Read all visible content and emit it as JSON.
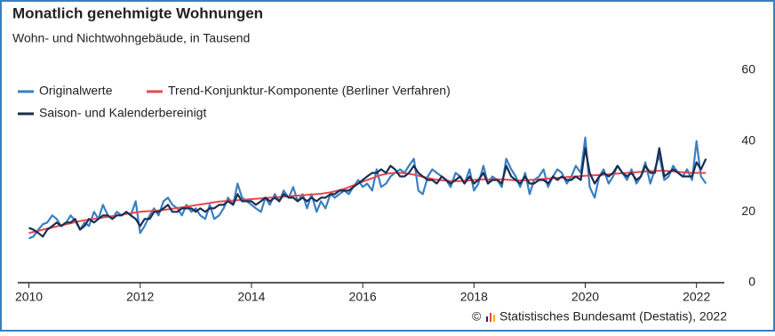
{
  "chart_data": {
    "type": "line",
    "title": "Monatlich genehmigte Wohnungen",
    "subtitle": "Wohn- und Nichtwohngebäude, in Tausend",
    "source_prefix": "©",
    "source": "Statistisches Bundesamt (Destatis), 2022",
    "xlim": [
      2009.8,
      2022.5
    ],
    "xticks": [
      2010,
      2012,
      2014,
      2016,
      2018,
      2020,
      2022
    ],
    "ylim": [
      0,
      60
    ],
    "yticks": [
      0,
      20,
      40,
      60
    ],
    "grid": false,
    "x": [
      2010.0,
      2010.08,
      2010.17,
      2010.25,
      2010.33,
      2010.42,
      2010.5,
      2010.58,
      2010.67,
      2010.75,
      2010.83,
      2010.92,
      2011.0,
      2011.08,
      2011.17,
      2011.25,
      2011.33,
      2011.42,
      2011.5,
      2011.58,
      2011.67,
      2011.75,
      2011.83,
      2011.92,
      2012.0,
      2012.08,
      2012.17,
      2012.25,
      2012.33,
      2012.42,
      2012.5,
      2012.58,
      2012.67,
      2012.75,
      2012.83,
      2012.92,
      2013.0,
      2013.08,
      2013.17,
      2013.25,
      2013.33,
      2013.42,
      2013.5,
      2013.58,
      2013.67,
      2013.75,
      2013.83,
      2013.92,
      2014.0,
      2014.08,
      2014.17,
      2014.25,
      2014.33,
      2014.42,
      2014.5,
      2014.58,
      2014.67,
      2014.75,
      2014.83,
      2014.92,
      2015.0,
      2015.08,
      2015.17,
      2015.25,
      2015.33,
      2015.42,
      2015.5,
      2015.58,
      2015.67,
      2015.75,
      2015.83,
      2015.92,
      2016.0,
      2016.08,
      2016.17,
      2016.25,
      2016.33,
      2016.42,
      2016.5,
      2016.58,
      2016.67,
      2016.75,
      2016.83,
      2016.92,
      2017.0,
      2017.08,
      2017.17,
      2017.25,
      2017.33,
      2017.42,
      2017.5,
      2017.58,
      2017.67,
      2017.75,
      2017.83,
      2017.92,
      2018.0,
      2018.08,
      2018.17,
      2018.25,
      2018.33,
      2018.42,
      2018.5,
      2018.58,
      2018.67,
      2018.75,
      2018.83,
      2018.92,
      2019.0,
      2019.08,
      2019.17,
      2019.25,
      2019.33,
      2019.42,
      2019.5,
      2019.58,
      2019.67,
      2019.75,
      2019.83,
      2019.92,
      2020.0,
      2020.08,
      2020.17,
      2020.25,
      2020.33,
      2020.42,
      2020.5,
      2020.58,
      2020.67,
      2020.75,
      2020.83,
      2020.92,
      2021.0,
      2021.08,
      2021.17,
      2021.25,
      2021.33,
      2021.42,
      2021.5,
      2021.58,
      2021.67,
      2021.75,
      2021.83,
      2021.92,
      2022.0,
      2022.08,
      2022.17
    ],
    "series": [
      {
        "name": "Originalwerte",
        "color": "#3a7fc1",
        "values": [
          12.5,
          13,
          15,
          16.5,
          17,
          19,
          18,
          16,
          17,
          19,
          17.5,
          15,
          17,
          16,
          20,
          18,
          22,
          19,
          18,
          20,
          19,
          20,
          19,
          23,
          14,
          16,
          19,
          21,
          19,
          23,
          24,
          22,
          21,
          19,
          22,
          20,
          21,
          19,
          18,
          22,
          18,
          19,
          21,
          24,
          22,
          28,
          24,
          23,
          22,
          21,
          20,
          24,
          22,
          25,
          23,
          26,
          24,
          27,
          23,
          25,
          21,
          25,
          20,
          23,
          21,
          25,
          24,
          25,
          26,
          25,
          27,
          29,
          27,
          28,
          26,
          32,
          27,
          28,
          30,
          31,
          32,
          31,
          33,
          35,
          26,
          25,
          30,
          32,
          31,
          30,
          29,
          27,
          31,
          30,
          28,
          32,
          26,
          28,
          33,
          28,
          30,
          29,
          27,
          35,
          32,
          30,
          27,
          31,
          25,
          29,
          30,
          32,
          27,
          30,
          32,
          31,
          28,
          30,
          33,
          31,
          41,
          27,
          24,
          30,
          32,
          28,
          30,
          33,
          31,
          29,
          32,
          28,
          30,
          34,
          28,
          32,
          36,
          29,
          30,
          33,
          31,
          30,
          32,
          29,
          40,
          30,
          28
        ]
      },
      {
        "name": "Trend-Konjunktur-Komponente (Berliner Verfahren)",
        "color": "#e8474f",
        "values": [
          14,
          14.3,
          14.6,
          15,
          15.3,
          15.6,
          15.9,
          16.2,
          16.5,
          16.8,
          17.1,
          17.4,
          17.6,
          17.8,
          18,
          18.2,
          18.4,
          18.6,
          18.8,
          19,
          19.2,
          19.4,
          19.6,
          19.8,
          20,
          20.1,
          20.2,
          20.3,
          20.4,
          20.5,
          20.7,
          20.9,
          21.1,
          21.3,
          21.5,
          21.7,
          21.9,
          22.1,
          22.3,
          22.5,
          22.7,
          22.9,
          23,
          23.1,
          23.2,
          23.3,
          23.4,
          23.5,
          23.6,
          23.7,
          23.8,
          23.9,
          24,
          24.1,
          24.2,
          24.3,
          24.4,
          24.5,
          24.6,
          24.7,
          24.8,
          24.9,
          25,
          25.1,
          25.3,
          25.5,
          25.8,
          26.1,
          26.5,
          27,
          27.5,
          28,
          28.5,
          29,
          29.5,
          30,
          30.4,
          30.7,
          30.9,
          31,
          31,
          30.9,
          30.7,
          30.5,
          30.2,
          29.9,
          29.6,
          29.3,
          29.1,
          28.9,
          28.8,
          28.7,
          28.7,
          28.7,
          28.8,
          28.9,
          29,
          29.1,
          29.2,
          29.2,
          29.2,
          29.2,
          29.2,
          29.1,
          29,
          28.9,
          28.9,
          28.9,
          29,
          29.1,
          29.2,
          29.3,
          29.4,
          29.5,
          29.6,
          29.7,
          29.8,
          29.9,
          30,
          30.1,
          30.2,
          30.3,
          30.3,
          30.4,
          30.5,
          30.6,
          30.7,
          30.8,
          30.9,
          31,
          31.1,
          31.2,
          31.3,
          31.4,
          31.5,
          31.5,
          31.6,
          31.6,
          31.5,
          31.4,
          31.3,
          31.2,
          31.1,
          31,
          31,
          31,
          31
        ]
      },
      {
        "name": "Saison- und Kalenderbereinigt",
        "color": "#1a2e52",
        "values": [
          15.5,
          15,
          14,
          13,
          15,
          16,
          17,
          16,
          17,
          17,
          18,
          15,
          16,
          18,
          17,
          18,
          19,
          19,
          18,
          19,
          19,
          20,
          19,
          18,
          16,
          18,
          18,
          20,
          20,
          21,
          22,
          20,
          20,
          21,
          21,
          21,
          20,
          21,
          20,
          21,
          21,
          22,
          22,
          23,
          22,
          25,
          23,
          23,
          23,
          22,
          23,
          24,
          23,
          24,
          23,
          25,
          24,
          24,
          23,
          24,
          23,
          24,
          23,
          24,
          24,
          25,
          25,
          26,
          26,
          26,
          27,
          28,
          29,
          30,
          31,
          31,
          32,
          31,
          33,
          32,
          30,
          30,
          31,
          33,
          31,
          30,
          29,
          29,
          28,
          30,
          29,
          28,
          29,
          30,
          28,
          30,
          28,
          29,
          31,
          28,
          29,
          29,
          28,
          33,
          30,
          29,
          28,
          30,
          28,
          28,
          29,
          29,
          28,
          30,
          29,
          30,
          29,
          29,
          30,
          29,
          38,
          31,
          28,
          30,
          31,
          30,
          31,
          33,
          31,
          30,
          31,
          29,
          30,
          33,
          31,
          31,
          38,
          30,
          31,
          32,
          31,
          30,
          30,
          30,
          34,
          32,
          35
        ]
      }
    ]
  }
}
